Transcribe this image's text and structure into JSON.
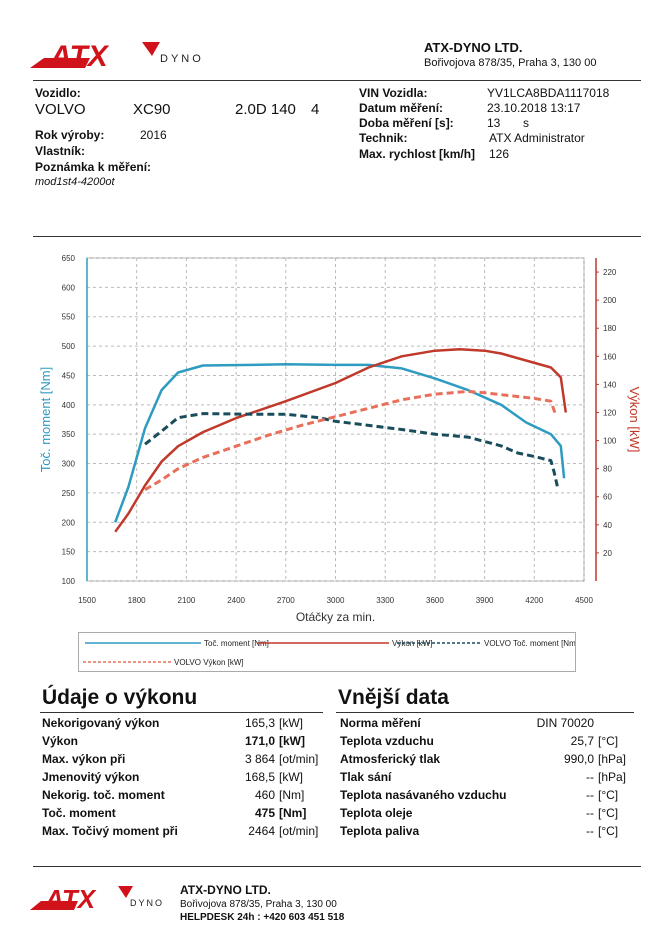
{
  "brand": {
    "logo_text": "ATX",
    "logo_sub": "DYNO",
    "company": "ATX-DYNO LTD.",
    "address": "Bořivojova 878/35, Praha 3, 130 00",
    "helpdesk": "HELPDESK 24h : +420 603 451 518"
  },
  "vehicle": {
    "label": "Vozidlo:",
    "make": "VOLVO",
    "model": "XC90",
    "engine": "2.0D 140",
    "variant": "4",
    "year_label": "Rok výroby:",
    "year": "2016",
    "owner_label": "Vlastník:",
    "owner": "",
    "note_label": "Poznámka k měření:",
    "note": "mod1st4-4200ot"
  },
  "test": {
    "vin_label": "VIN Vozidla:",
    "vin": "YV1LCA8BDA1117018",
    "date_label": "Datum měření:",
    "date": "23.10.2018 13:17",
    "duration_label": "Doba měření [s]:",
    "duration": "13",
    "duration_unit": "s",
    "tech_label": "Technik:",
    "tech": "ATX Administrator",
    "speed_label": "Max. rychlost [km/h]",
    "speed": "126"
  },
  "chart_data": {
    "type": "line",
    "xlabel": "Otáčky za min.",
    "ylabel_left": "Toč. moment [Nm]",
    "ylabel_right": "Výkon [kW]",
    "xlim": [
      1500,
      4500
    ],
    "ylim_left": [
      100,
      650
    ],
    "ylim_right": [
      0,
      230
    ],
    "x_ticks": [
      1500,
      1800,
      2100,
      2400,
      2700,
      3000,
      3300,
      3600,
      3900,
      4200,
      4500
    ],
    "y_left_ticks": [
      100,
      150,
      200,
      250,
      300,
      350,
      400,
      450,
      500,
      550,
      600,
      650
    ],
    "y_right_ticks": [
      20,
      40,
      60,
      80,
      100,
      120,
      140,
      160,
      180,
      200,
      220
    ],
    "grid": true,
    "legend_position": "bottom",
    "series": [
      {
        "name": "Toč. moment [Nm]",
        "axis": "left",
        "color": "#2e9bc0",
        "dash": false,
        "points": [
          [
            1670,
            200
          ],
          [
            1750,
            260
          ],
          [
            1850,
            360
          ],
          [
            1950,
            425
          ],
          [
            2050,
            455
          ],
          [
            2200,
            467
          ],
          [
            2500,
            468
          ],
          [
            2700,
            469
          ],
          [
            3000,
            468
          ],
          [
            3200,
            468
          ],
          [
            3400,
            462
          ],
          [
            3600,
            445
          ],
          [
            3800,
            425
          ],
          [
            4000,
            400
          ],
          [
            4150,
            370
          ],
          [
            4300,
            350
          ],
          [
            4360,
            330
          ],
          [
            4380,
            275
          ]
        ]
      },
      {
        "name": "Výkon [kW]",
        "axis": "right",
        "color": "#c0392b",
        "dash": false,
        "points": [
          [
            1670,
            35
          ],
          [
            1750,
            48
          ],
          [
            1850,
            68
          ],
          [
            1950,
            85
          ],
          [
            2050,
            96
          ],
          [
            2200,
            106
          ],
          [
            2400,
            116
          ],
          [
            2700,
            128
          ],
          [
            3000,
            141
          ],
          [
            3200,
            152
          ],
          [
            3400,
            160
          ],
          [
            3600,
            164
          ],
          [
            3750,
            165
          ],
          [
            3900,
            164
          ],
          [
            4000,
            162
          ],
          [
            4150,
            157
          ],
          [
            4300,
            152
          ],
          [
            4360,
            145
          ],
          [
            4390,
            120
          ]
        ]
      },
      {
        "name": "VOLVO Toč. moment [Nm]",
        "axis": "left",
        "color": "#1a4d5c",
        "dash": true,
        "points": [
          [
            1850,
            333
          ],
          [
            1950,
            355
          ],
          [
            2050,
            378
          ],
          [
            2200,
            385
          ],
          [
            2500,
            384
          ],
          [
            2700,
            384
          ],
          [
            2900,
            378
          ],
          [
            3000,
            372
          ],
          [
            3200,
            365
          ],
          [
            3400,
            358
          ],
          [
            3600,
            350
          ],
          [
            3800,
            345
          ],
          [
            4000,
            330
          ],
          [
            4100,
            318
          ],
          [
            4200,
            312
          ],
          [
            4300,
            305
          ],
          [
            4320,
            285
          ],
          [
            4340,
            260
          ]
        ]
      },
      {
        "name": "VOLVO Výkon [kW]",
        "axis": "right",
        "color": "#e8705a",
        "dash": true,
        "points": [
          [
            1850,
            65
          ],
          [
            1950,
            72
          ],
          [
            2050,
            80
          ],
          [
            2200,
            88
          ],
          [
            2400,
            96
          ],
          [
            2600,
            104
          ],
          [
            2800,
            111
          ],
          [
            3000,
            117
          ],
          [
            3200,
            123
          ],
          [
            3400,
            129
          ],
          [
            3600,
            133
          ],
          [
            3800,
            135
          ],
          [
            3900,
            134
          ],
          [
            4050,
            132
          ],
          [
            4200,
            130
          ],
          [
            4300,
            128
          ],
          [
            4330,
            118
          ]
        ]
      }
    ]
  },
  "perf": {
    "title": "Údaje o výkonu",
    "rows": [
      {
        "label": "Nekorigovaný výkon",
        "value": "165,3",
        "unit": "[kW]",
        "bold": false
      },
      {
        "label": "Výkon",
        "value": "171,0",
        "unit": "[kW]",
        "bold": true
      },
      {
        "label": "Max. výkon při",
        "value": "3 864",
        "unit": "[ot/min]",
        "bold": false
      },
      {
        "label": "Jmenovitý výkon",
        "value": "168,5",
        "unit": "[kW]",
        "bold": false
      },
      {
        "label": "Nekorig. toč. moment",
        "value": "460",
        "unit": "[Nm]",
        "bold": false
      },
      {
        "label": "Toč. moment",
        "value": "475",
        "unit": "[Nm]",
        "bold": true
      },
      {
        "label": "Max. Točivý moment při",
        "value": "2464",
        "unit": "[ot/min]",
        "bold": false
      }
    ]
  },
  "ext": {
    "title": "Vnější data",
    "rows": [
      {
        "label": "Norma měření",
        "value": "DIN 70020",
        "unit": ""
      },
      {
        "label": "Teplota vzduchu",
        "value": "25,7",
        "unit": "[°C]"
      },
      {
        "label": "Atmosferický tlak",
        "value": "990,0",
        "unit": "[hPa]"
      },
      {
        "label": "Tlak sání",
        "value": "--",
        "unit": "[hPa]"
      },
      {
        "label": "Teplota nasávaného vzduchu",
        "value": "--",
        "unit": "[°C]"
      },
      {
        "label": "Teplota oleje",
        "value": "--",
        "unit": "[°C]"
      },
      {
        "label": "Teplota paliva",
        "value": "--",
        "unit": "[°C]"
      }
    ]
  }
}
